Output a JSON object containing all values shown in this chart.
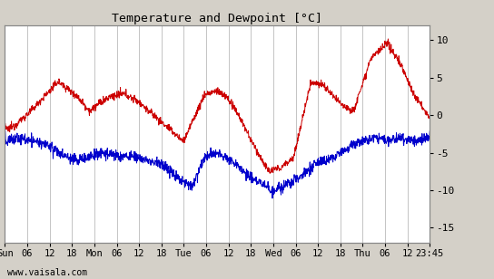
{
  "title": "Temperature and Dewpoint [°C]",
  "xlabel_bottom": "www.vaisala.com",
  "bg_color": "#d4d0c8",
  "plot_bg_color": "#ffffff",
  "grid_color": "#c0c0c0",
  "temp_color": "#cc0000",
  "dew_color": "#0000cc",
  "yticks": [
    -15,
    -10,
    -5,
    0,
    5,
    10
  ],
  "ylim": [
    -17,
    12
  ],
  "x_tick_labels": [
    "Sun",
    "06",
    "12",
    "18",
    "Mon",
    "06",
    "12",
    "18",
    "Tue",
    "06",
    "12",
    "18",
    "Wed",
    "06",
    "12",
    "18",
    "Thu",
    "06",
    "12",
    "23:45"
  ],
  "n_points": 1440,
  "temp_keypoints_x": [
    0,
    0.02,
    0.06,
    0.125,
    0.17,
    0.2,
    0.22,
    0.25,
    0.28,
    0.31,
    0.33,
    0.36,
    0.39,
    0.42,
    0.47,
    0.5,
    0.52,
    0.55,
    0.58,
    0.62,
    0.65,
    0.68,
    0.72,
    0.75,
    0.78,
    0.82,
    0.86,
    0.9,
    0.93,
    0.96,
    1.0
  ],
  "temp_keypoints_y": [
    -2.0,
    -1.5,
    0.5,
    4.5,
    2.5,
    0.5,
    1.5,
    2.5,
    2.8,
    2.0,
    1.0,
    -0.5,
    -2.0,
    -3.5,
    2.8,
    3.2,
    2.5,
    0.0,
    -3.5,
    -7.5,
    -7.0,
    -5.5,
    4.5,
    4.0,
    2.0,
    0.5,
    7.5,
    9.5,
    7.0,
    3.0,
    -0.5
  ],
  "dew_keypoints_x": [
    0,
    0.03,
    0.07,
    0.1,
    0.14,
    0.17,
    0.2,
    0.23,
    0.27,
    0.3,
    0.33,
    0.37,
    0.4,
    0.44,
    0.47,
    0.5,
    0.53,
    0.56,
    0.6,
    0.63,
    0.66,
    0.7,
    0.73,
    0.76,
    0.8,
    0.84,
    0.87,
    0.9,
    0.93,
    0.97,
    1.0
  ],
  "dew_keypoints_y": [
    -3.5,
    -3.0,
    -3.5,
    -4.0,
    -5.5,
    -6.0,
    -5.5,
    -5.0,
    -5.5,
    -5.5,
    -6.0,
    -6.5,
    -8.0,
    -9.5,
    -5.5,
    -5.0,
    -6.0,
    -7.5,
    -9.0,
    -10.0,
    -9.5,
    -8.0,
    -6.5,
    -6.0,
    -4.5,
    -3.5,
    -3.0,
    -3.5,
    -3.0,
    -3.5,
    -3.0
  ]
}
